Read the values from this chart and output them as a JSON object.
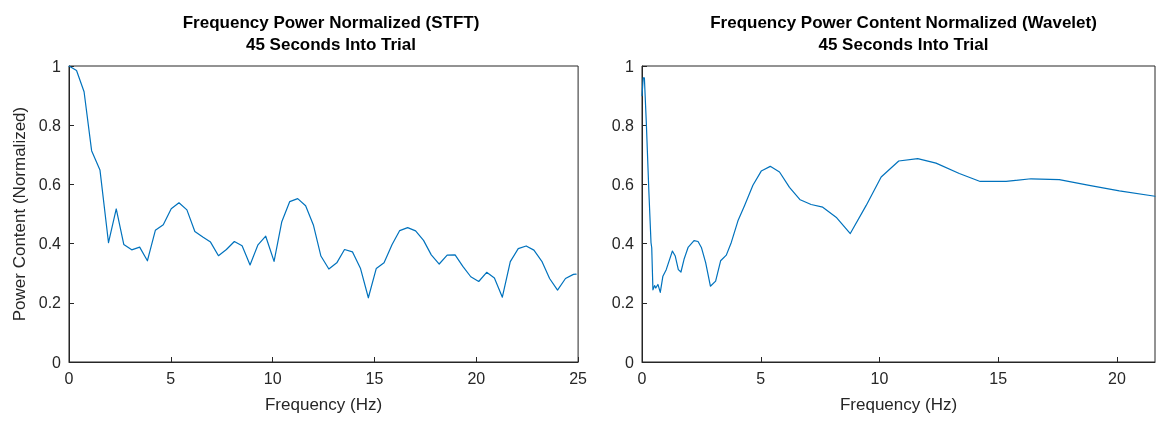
{
  "chart_data": [
    {
      "type": "line",
      "title": "Frequency Power Normalized (STFT)\n45 Seconds Into Trial",
      "xlabel": "Frequency (Hz)",
      "ylabel": "Power Content (Normalized)",
      "xlim": [
        0,
        25
      ],
      "xticks": [
        0,
        5,
        10,
        15,
        20,
        25
      ],
      "ylim": [
        0,
        1
      ],
      "yticks": [
        0,
        0.2,
        0.4,
        0.6,
        0.8,
        1
      ],
      "grid": false,
      "marker": "none",
      "line_style": "solid",
      "series": [
        {
          "color": "#0072bd",
          "x": [
            0,
            0.37,
            0.74,
            1.11,
            1.52,
            1.94,
            2.32,
            2.69,
            3.08,
            3.47,
            3.85,
            4.24,
            4.63,
            5.02,
            5.4,
            5.79,
            6.18,
            6.57,
            6.95,
            7.34,
            7.73,
            8.12,
            8.5,
            8.89,
            9.28,
            9.66,
            10.07,
            10.45,
            10.84,
            11.23,
            11.62,
            12.0,
            12.37,
            12.76,
            13.15,
            13.53,
            13.92,
            14.31,
            14.7,
            15.09,
            15.47,
            15.86,
            16.24,
            16.63,
            17.02,
            17.41,
            17.79,
            18.18,
            18.57,
            18.96,
            19.34,
            19.73,
            20.12,
            20.51,
            20.89,
            21.28,
            21.67,
            22.06,
            22.45,
            22.83,
            23.22,
            23.6,
            23.99,
            24.38,
            24.77,
            24.9
          ],
          "values": [
            1.0,
            0.985,
            0.913,
            0.714,
            0.649,
            0.403,
            0.517,
            0.397,
            0.379,
            0.388,
            0.342,
            0.445,
            0.464,
            0.518,
            0.538,
            0.514,
            0.441,
            0.422,
            0.405,
            0.359,
            0.38,
            0.407,
            0.393,
            0.328,
            0.396,
            0.425,
            0.34,
            0.474,
            0.542,
            0.552,
            0.528,
            0.463,
            0.358,
            0.314,
            0.335,
            0.38,
            0.372,
            0.317,
            0.217,
            0.316,
            0.335,
            0.396,
            0.444,
            0.454,
            0.443,
            0.411,
            0.362,
            0.331,
            0.361,
            0.362,
            0.323,
            0.288,
            0.272,
            0.303,
            0.284,
            0.219,
            0.339,
            0.383,
            0.392,
            0.378,
            0.34,
            0.282,
            0.243,
            0.282,
            0.296,
            0.297
          ]
        }
      ]
    },
    {
      "type": "line",
      "title": "Frequency Power Content Normalized (Wavelet)\n45 Seconds Into Trial",
      "xlabel": "Frequency (Hz)",
      "xlim": [
        0,
        21.6
      ],
      "xticks": [
        0,
        5,
        10,
        15,
        20
      ],
      "ylim": [
        0,
        1
      ],
      "yticks": [
        0,
        0.2,
        0.4,
        0.6,
        0.8,
        1
      ],
      "grid": false,
      "marker": "none",
      "line_style": "solid",
      "series": [
        {
          "color": "#0072bd",
          "x": [
            0,
            0.05,
            0.1,
            0.18,
            0.29,
            0.38,
            0.41,
            0.46,
            0.53,
            0.58,
            0.67,
            0.77,
            0.88,
            1.02,
            1.28,
            1.4,
            1.53,
            1.64,
            1.77,
            1.94,
            2.19,
            2.36,
            2.5,
            2.68,
            2.88,
            3.1,
            3.31,
            3.55,
            3.76,
            4.04,
            4.32,
            4.67,
            5.02,
            5.4,
            5.79,
            6.21,
            6.66,
            7.12,
            7.61,
            8.2,
            8.77,
            9.44,
            10.07,
            10.81,
            11.61,
            12.38,
            13.36,
            14.24,
            15.33,
            16.38,
            17.57,
            18.83,
            20.1,
            21.6
          ],
          "values": [
            0.9,
            0.96,
            0.96,
            0.812,
            0.574,
            0.403,
            0.386,
            0.244,
            0.258,
            0.25,
            0.262,
            0.235,
            0.29,
            0.312,
            0.375,
            0.358,
            0.312,
            0.304,
            0.347,
            0.387,
            0.41,
            0.407,
            0.387,
            0.336,
            0.256,
            0.273,
            0.342,
            0.361,
            0.404,
            0.477,
            0.529,
            0.597,
            0.645,
            0.661,
            0.642,
            0.59,
            0.548,
            0.532,
            0.523,
            0.487,
            0.434,
            0.529,
            0.625,
            0.679,
            0.687,
            0.672,
            0.637,
            0.61,
            0.61,
            0.619,
            0.616,
            0.597,
            0.578,
            0.56
          ]
        }
      ]
    }
  ]
}
